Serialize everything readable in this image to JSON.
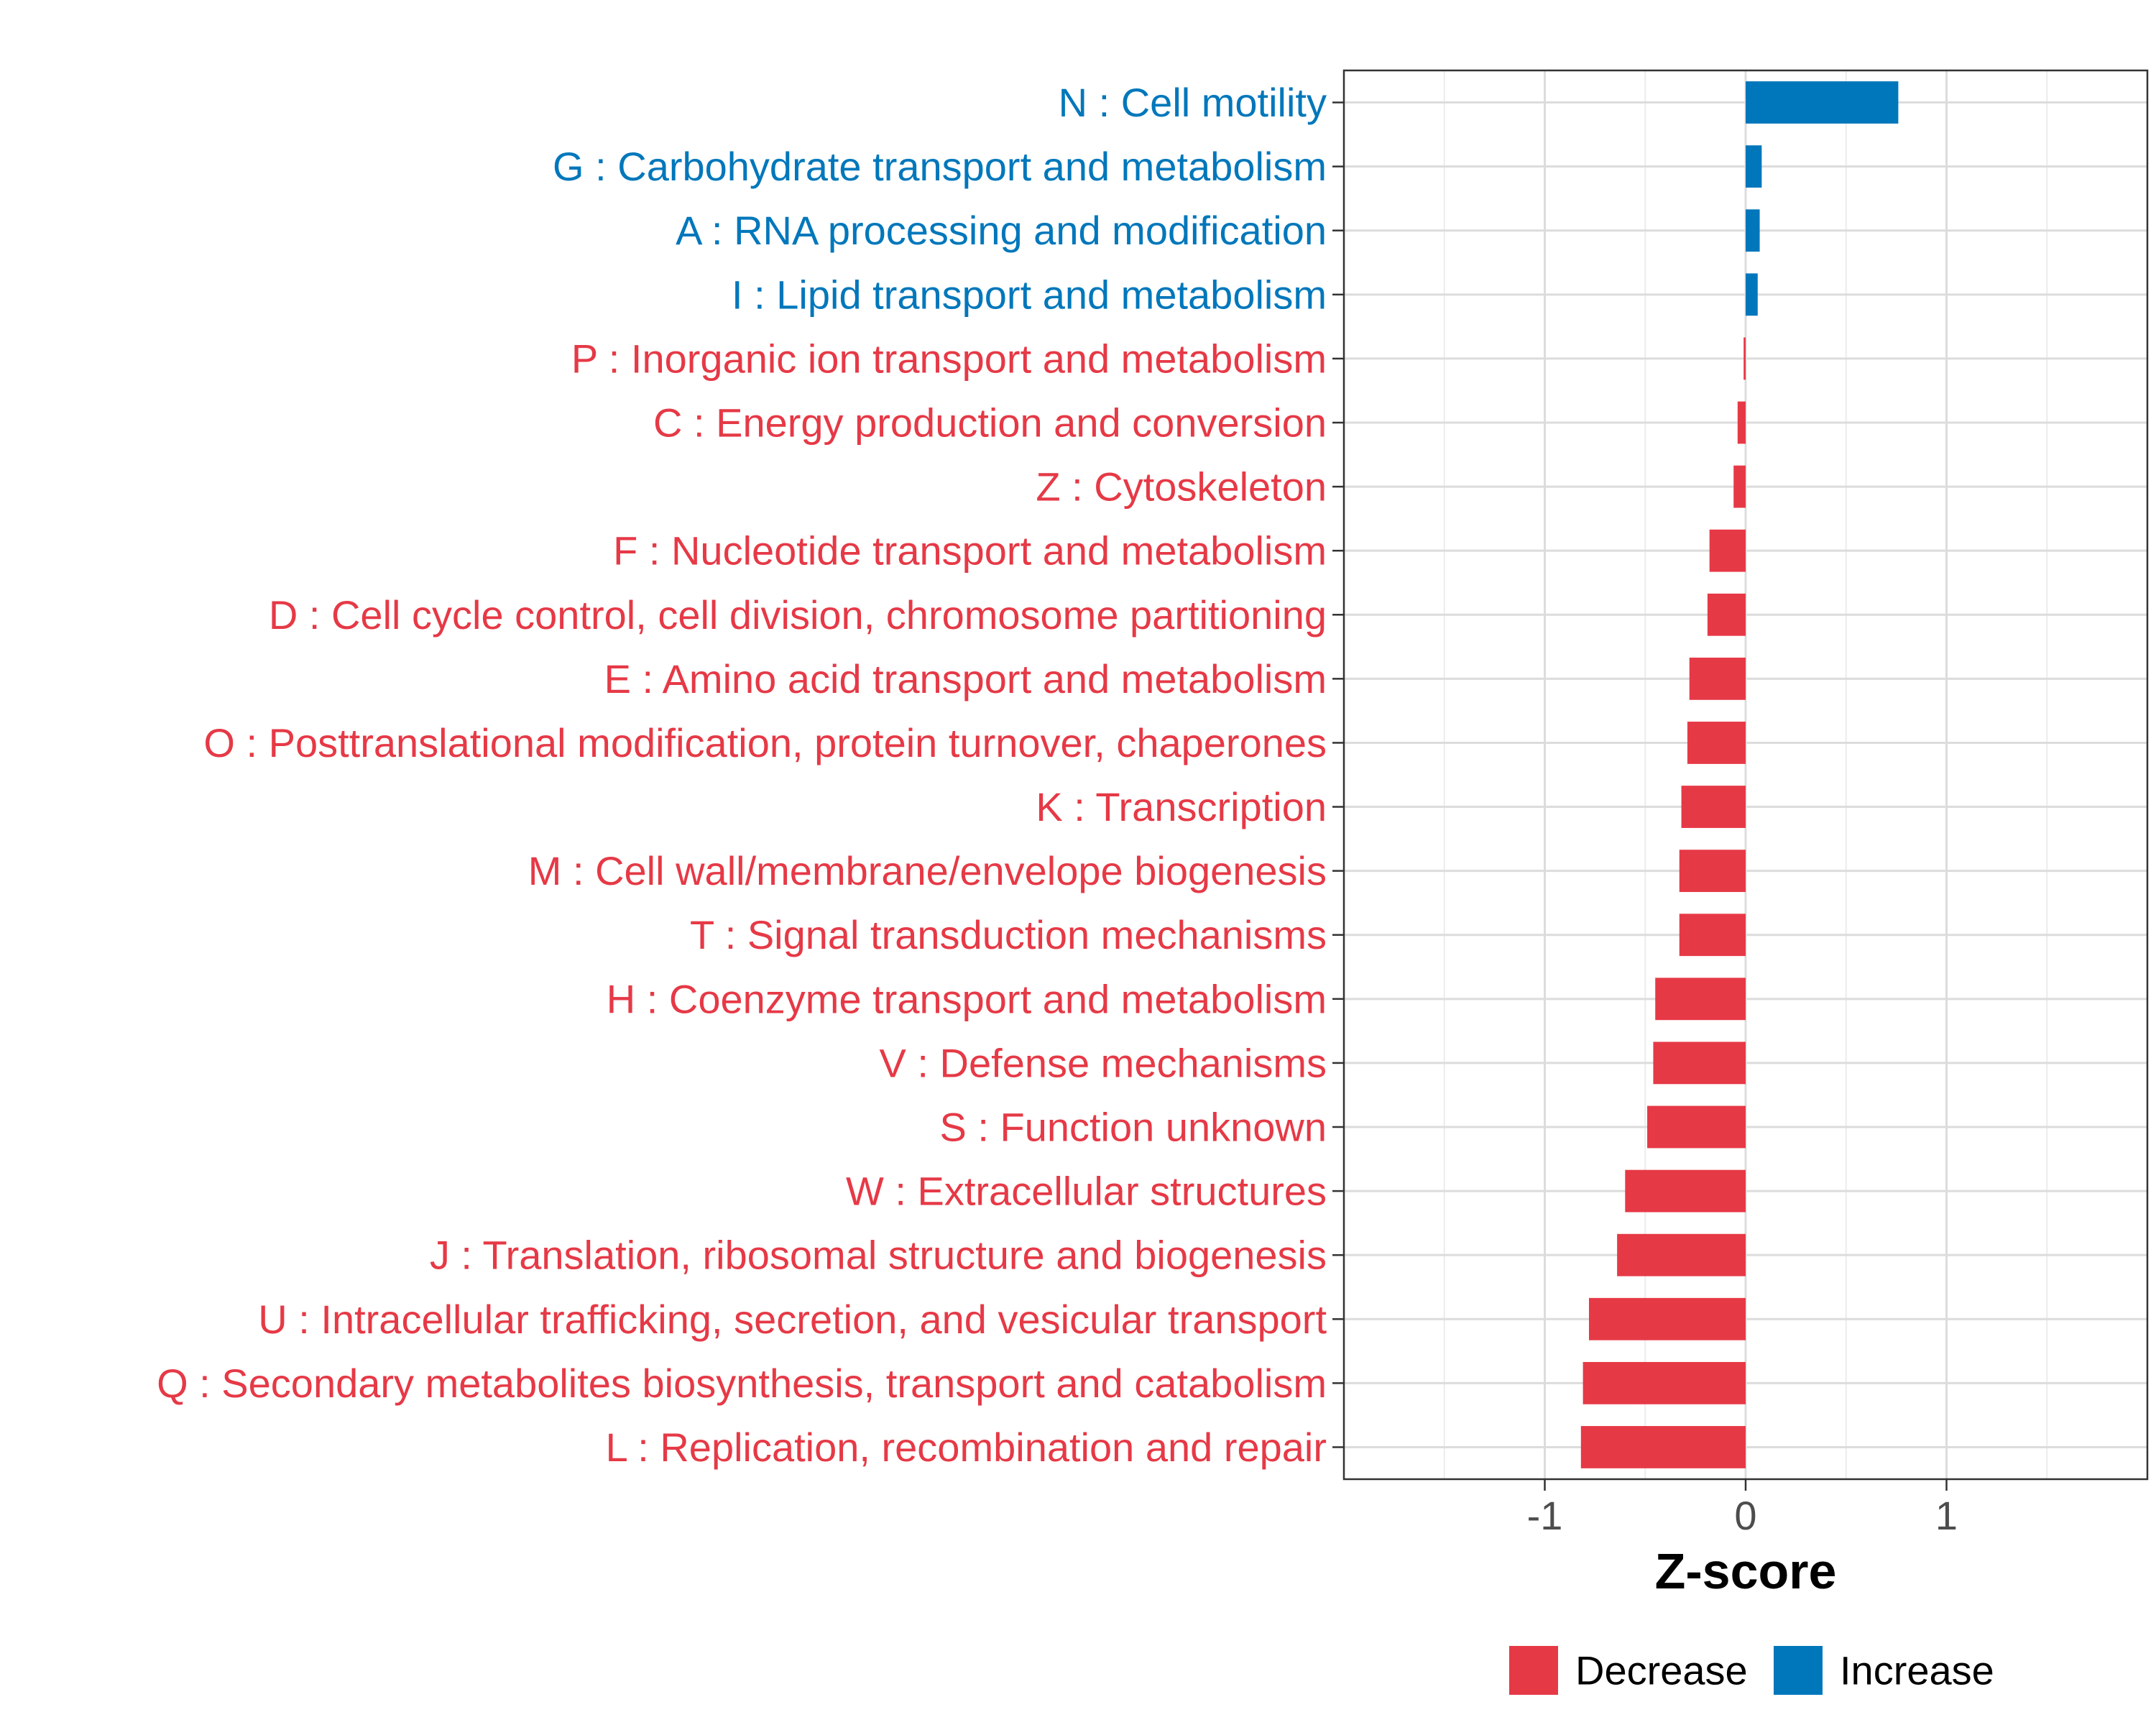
{
  "chart_data": {
    "type": "bar",
    "orientation": "horizontal",
    "title": "",
    "xlabel": "Z-score",
    "ylabel": "",
    "xlim": [
      -2.0,
      2.0
    ],
    "xticks": [
      {
        "value": -1,
        "label": "-1"
      },
      {
        "value": 0,
        "label": "0"
      },
      {
        "value": 1,
        "label": "1"
      }
    ],
    "grid": true,
    "legend_position": "bottom",
    "colors": {
      "Decrease": "#e63946",
      "Increase": "#0077bb"
    },
    "legend": [
      {
        "name": "Decrease",
        "color": "#e63946"
      },
      {
        "name": "Increase",
        "color": "#0077bb"
      }
    ],
    "categories": [
      "N : Cell motility",
      "G : Carbohydrate transport and metabolism",
      "A : RNA processing and modification",
      "I : Lipid transport and metabolism",
      "P : Inorganic ion transport and metabolism",
      "C : Energy production and conversion",
      "Z : Cytoskeleton",
      "F : Nucleotide transport and metabolism",
      "D : Cell cycle control, cell division, chromosome partitioning",
      "E : Amino acid transport and metabolism",
      "O : Posttranslational modification, protein turnover, chaperones",
      "K : Transcription",
      "M : Cell wall/membrane/envelope biogenesis",
      "T : Signal transduction mechanisms",
      "H : Coenzyme transport and metabolism",
      "V : Defense mechanisms",
      "S : Function unknown",
      "W : Extracellular structures",
      "J : Translation, ribosomal structure and biogenesis",
      "U : Intracellular trafficking, secretion, and vesicular transport",
      "Q : Secondary metabolites biosynthesis, transport and catabolism",
      "L : Replication, recombination and repair"
    ],
    "values": [
      0.76,
      0.08,
      0.07,
      0.06,
      -0.01,
      -0.04,
      -0.06,
      -0.18,
      -0.19,
      -0.28,
      -0.29,
      -0.32,
      -0.33,
      -0.33,
      -0.45,
      -0.46,
      -0.49,
      -0.6,
      -0.64,
      -0.78,
      -0.81,
      -0.82
    ],
    "groups": [
      "Increase",
      "Increase",
      "Increase",
      "Increase",
      "Decrease",
      "Decrease",
      "Decrease",
      "Decrease",
      "Decrease",
      "Decrease",
      "Decrease",
      "Decrease",
      "Decrease",
      "Decrease",
      "Decrease",
      "Decrease",
      "Decrease",
      "Decrease",
      "Decrease",
      "Decrease",
      "Decrease",
      "Decrease"
    ]
  }
}
